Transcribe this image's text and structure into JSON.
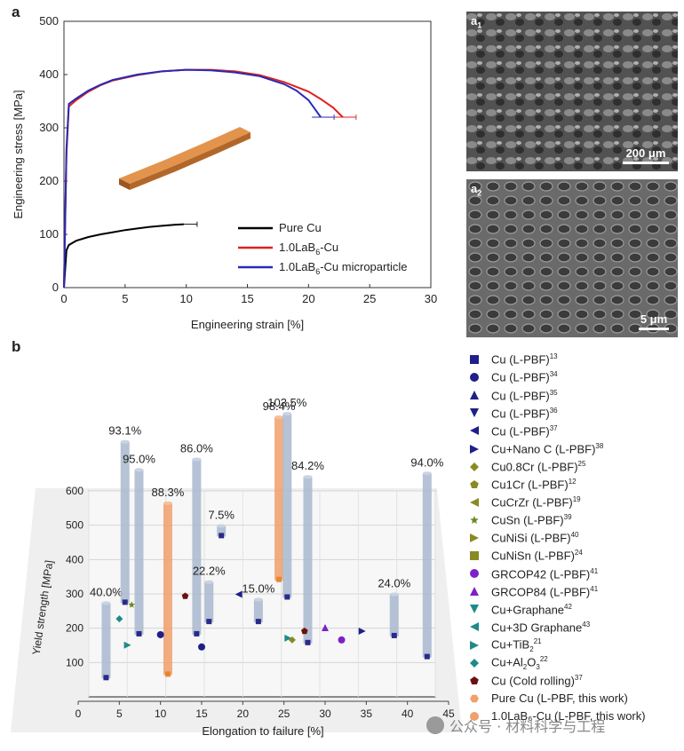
{
  "panels": {
    "a": "a",
    "b": "b",
    "a1": "a",
    "a1_sub": "1",
    "a2": "a",
    "a2_sub": "2"
  },
  "sem_scalebars": {
    "a1": "200 μm",
    "a2": "5 μm"
  },
  "colors": {
    "pure_cu": "#000000",
    "lab6": "#e0201e",
    "lab6_micro": "#2a2ab5",
    "bar_blue": "#a9b8cf",
    "bar_orange": "#f0a06a",
    "sample": "#c8782e"
  },
  "chart_data": [
    {
      "type": "line",
      "xlabel": "Engineering strain [%]",
      "ylabel": "Engineering stress [MPa]",
      "xlim": [
        0,
        30
      ],
      "ylim": [
        0,
        500
      ],
      "xticks": [
        "0",
        "5",
        "10",
        "15",
        "20",
        "25",
        "30"
      ],
      "yticks": [
        "0",
        "100",
        "200",
        "300",
        "400",
        "500"
      ],
      "series": [
        {
          "name": "Pure Cu",
          "color": "#000000",
          "x": [
            0,
            0.2,
            0.4,
            1,
            2,
            3,
            4,
            5,
            6,
            7,
            8,
            9,
            9.8
          ],
          "y": [
            0,
            70,
            80,
            88,
            95,
            100,
            104,
            108,
            111,
            114,
            116,
            118,
            119
          ]
        },
        {
          "name": "1.0LaB6-Cu",
          "color": "#e0201e",
          "x": [
            0,
            0.2,
            0.4,
            1,
            2,
            3,
            4,
            6,
            8,
            10,
            12,
            14,
            16,
            18,
            20,
            21,
            22,
            22.8
          ],
          "y": [
            0,
            250,
            340,
            352,
            368,
            380,
            389,
            399,
            406,
            409,
            409,
            406,
            399,
            386,
            368,
            354,
            338,
            320
          ]
        },
        {
          "name": "1.0LaB6-Cu microparticle",
          "color": "#2a2ab5",
          "x": [
            0,
            0.2,
            0.4,
            1,
            2,
            3,
            4,
            6,
            8,
            10,
            12,
            14,
            16,
            18,
            19,
            20,
            21
          ],
          "y": [
            0,
            260,
            345,
            355,
            370,
            381,
            390,
            400,
            406,
            409,
            408,
            404,
            397,
            382,
            370,
            352,
            320
          ]
        }
      ],
      "legend_labels": {
        "pure_cu": "Pure Cu",
        "lab6_pre": "1.0LaB",
        "lab6_sub": "6",
        "lab6_post": "-Cu",
        "micro_post": "-Cu microparticle"
      }
    },
    {
      "type": "bar3d-scatter",
      "xlabel": "Elongation to failure [%]",
      "ylabel": "Yield strength [MPa]",
      "xlim": [
        0,
        45
      ],
      "ylim": [
        0,
        600
      ],
      "xticks": [
        "0",
        "5",
        "10",
        "15",
        "20",
        "25",
        "30",
        "35",
        "40",
        "45"
      ],
      "yticks": [
        "100",
        "200",
        "300",
        "400",
        "500",
        "600"
      ],
      "bars": [
        {
          "x": 3.5,
          "base": 65,
          "top": 280,
          "pct": "40.0%",
          "color": "blue"
        },
        {
          "x": 5.8,
          "base": 280,
          "top": 740,
          "pct": "93.1%",
          "color": "blue"
        },
        {
          "x": 7.5,
          "base": 190,
          "top": 660,
          "pct": "95.0%",
          "color": "blue"
        },
        {
          "x": 11.0,
          "base": 75,
          "top": 565,
          "pct": "88.3%",
          "color": "orange"
        },
        {
          "x": 14.5,
          "base": 190,
          "top": 690,
          "pct": "86.0%",
          "color": "blue"
        },
        {
          "x": 16.0,
          "base": 225,
          "top": 340,
          "pct": "22.2%",
          "color": "blue"
        },
        {
          "x": 17.5,
          "base": 470,
          "top": 500,
          "pct": "7.5%",
          "color": "blue"
        },
        {
          "x": 22.0,
          "base": 225,
          "top": 290,
          "pct": "15.0%",
          "color": "blue"
        },
        {
          "x": 24.5,
          "base": 345,
          "top": 810,
          "pct": "98.4%",
          "color": "orange"
        },
        {
          "x": 25.5,
          "base": 295,
          "top": 820,
          "pct": "103.5%",
          "color": "blue"
        },
        {
          "x": 28.0,
          "base": 165,
          "top": 640,
          "pct": "84.2%",
          "color": "blue"
        },
        {
          "x": 38.5,
          "base": 185,
          "top": 305,
          "pct": "24.0%",
          "color": "blue"
        },
        {
          "x": 42.5,
          "base": 125,
          "top": 650,
          "pct": "94.0%",
          "color": "blue"
        }
      ],
      "points": [
        {
          "x": 10,
          "y": 190,
          "marker": "circle",
          "color": "#1f1f8a"
        },
        {
          "x": 15,
          "y": 155,
          "marker": "circle",
          "color": "#1f1f8a"
        },
        {
          "x": 19.5,
          "y": 305,
          "marker": "tri-left",
          "color": "#1f1f8a"
        },
        {
          "x": 25.5,
          "y": 180,
          "marker": "tri-right",
          "color": "#1f8a8a"
        },
        {
          "x": 26,
          "y": 175,
          "marker": "diamond",
          "color": "#8a8a22"
        },
        {
          "x": 27.5,
          "y": 200,
          "marker": "pentagon",
          "color": "#6b1010"
        },
        {
          "x": 30,
          "y": 210,
          "marker": "tri-up",
          "color": "#7a22c8"
        },
        {
          "x": 32,
          "y": 175,
          "marker": "circle",
          "color": "#7a22c8"
        },
        {
          "x": 34.5,
          "y": 200,
          "marker": "tri-right",
          "color": "#1f1f8a"
        },
        {
          "x": 13,
          "y": 300,
          "marker": "pentagon",
          "color": "#6b1010"
        },
        {
          "x": 6,
          "y": 160,
          "marker": "tri-right",
          "color": "#1f8a8a"
        },
        {
          "x": 5,
          "y": 235,
          "marker": "diamond",
          "color": "#1f8a8a"
        },
        {
          "x": 6.5,
          "y": 275,
          "marker": "star",
          "color": "#6b8a22"
        }
      ]
    }
  ],
  "legend_b": [
    {
      "label": "Cu (L-PBF)",
      "ref": "13",
      "marker": "square",
      "color": "#1f1f8a"
    },
    {
      "label": "Cu (L-PBF)",
      "ref": "34",
      "marker": "circle",
      "color": "#1f1f8a"
    },
    {
      "label": "Cu (L-PBF)",
      "ref": "35",
      "marker": "tri-up",
      "color": "#1f1f8a"
    },
    {
      "label": "Cu (L-PBF)",
      "ref": "36",
      "marker": "tri-down",
      "color": "#1f1f8a"
    },
    {
      "label": "Cu (L-PBF)",
      "ref": "37",
      "marker": "tri-left",
      "color": "#1f1f8a"
    },
    {
      "label": "Cu+Nano C (L-PBF)",
      "ref": "38",
      "marker": "tri-right",
      "color": "#1f1f8a"
    },
    {
      "label": "Cu0.8Cr (L-PBF)",
      "ref": "25",
      "marker": "diamond",
      "color": "#8a8a22"
    },
    {
      "label": "Cu1Cr (L-PBF)",
      "ref": "12",
      "marker": "pentagon",
      "color": "#8a8a22"
    },
    {
      "label": "CuCrZr (L-PBF)",
      "ref": "19",
      "marker": "tri-left",
      "color": "#8a8a22"
    },
    {
      "label": "CuSn (L-PBF)",
      "ref": "39",
      "marker": "star",
      "color": "#6b8a22"
    },
    {
      "label": "CuNiSi (L-PBF)",
      "ref": "40",
      "marker": "tri-right",
      "color": "#8a8a22"
    },
    {
      "label": "CuNiSn (L-PBF)",
      "ref": "24",
      "marker": "square",
      "color": "#8a8a22"
    },
    {
      "label": "GRCOP42 (L-PBF)",
      "ref": "41",
      "marker": "circle",
      "color": "#7a22c8"
    },
    {
      "label": "GRCOP84 (L-PBF)",
      "ref": "41",
      "marker": "tri-up",
      "color": "#7a22c8"
    },
    {
      "label": "Cu+Graphane",
      "ref": "42",
      "marker": "tri-down",
      "color": "#1f8a8a"
    },
    {
      "label": "Cu+3D Graphane",
      "ref": "43",
      "marker": "tri-left",
      "color": "#1f8a8a"
    },
    {
      "label": "Cu+TiB",
      "sub": "2",
      "ref": "21",
      "marker": "tri-right",
      "color": "#1f8a8a"
    },
    {
      "label": "Cu+Al",
      "sub": "2",
      "mid": "O",
      "sub2": "3",
      "ref": "22",
      "marker": "diamond",
      "color": "#1f8a8a"
    },
    {
      "label": "Cu (Cold rolling)",
      "ref": "37",
      "marker": "pentagon",
      "color": "#6b1010"
    },
    {
      "label": "Pure Cu (L-PBF, this work)",
      "ref": "",
      "marker": "hexagon",
      "color": "#f0a06a"
    },
    {
      "label": "1.0LaB₆-Cu (L-PBF, this work)",
      "ref": "",
      "marker": "circle-orange",
      "color": "#f0a06a"
    }
  ],
  "watermark": "公众号 · 材料科学与工程"
}
